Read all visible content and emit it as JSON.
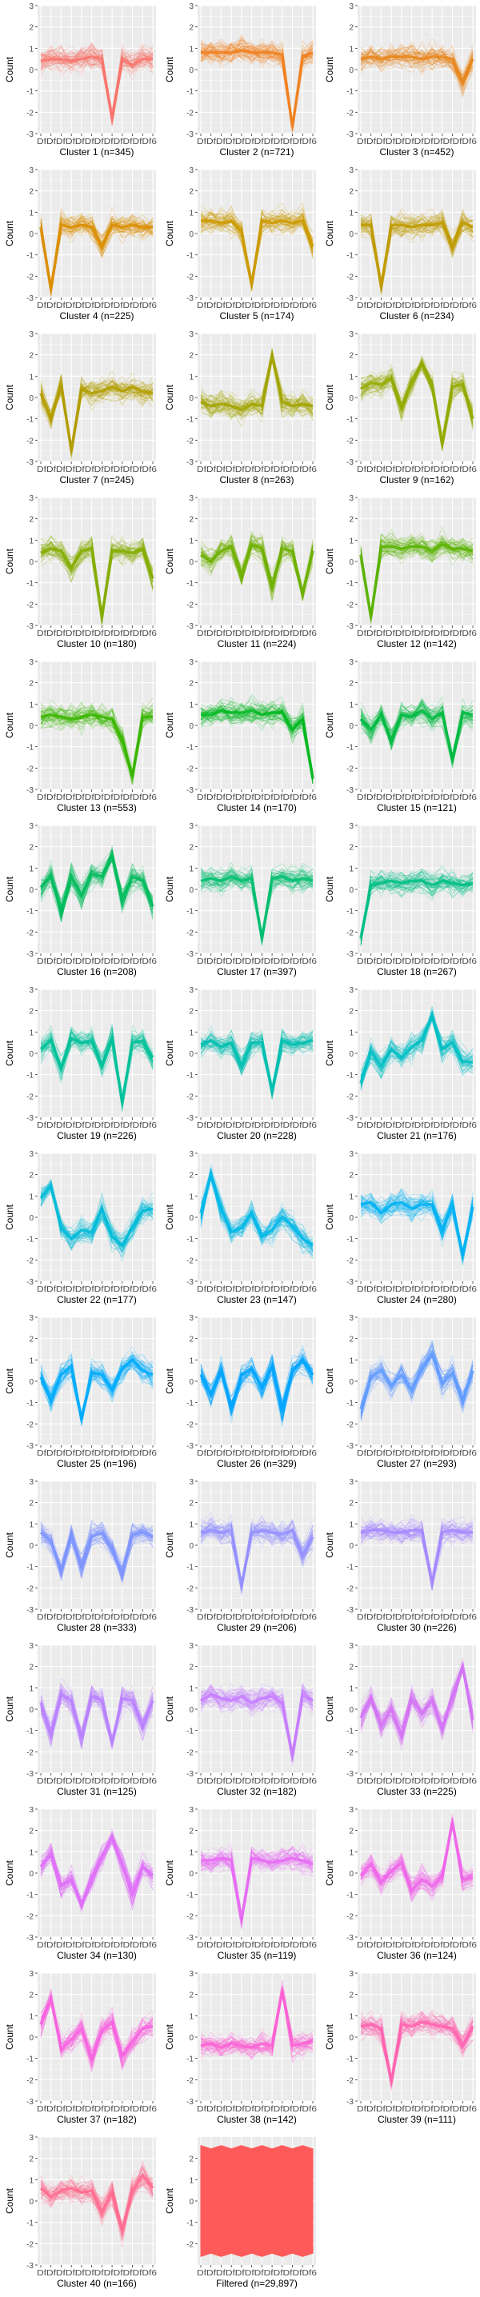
{
  "ylabel": "Count",
  "ytick_labels": [
    "3",
    "2",
    "1",
    "0",
    "-1",
    "-2",
    "-3"
  ],
  "xtick_text": "DfDfDfDfDfDfDfDfDfDfDfDf6",
  "chart_data": {
    "type": "line",
    "description": "Small multiples of expression profiles per cluster (overlaid lines, one per gene)",
    "ylim": [
      -3,
      3
    ],
    "ytick_values": [
      3,
      2,
      1,
      0,
      -1,
      -2,
      -3
    ],
    "n_timepoints": 12,
    "panels": [
      {
        "title": "Cluster 1 (n=345)",
        "color": "#F8766D",
        "profile": [
          0.4,
          0.5,
          0.5,
          0.4,
          0.5,
          0.6,
          0.5,
          -2.3,
          0.5,
          0.2,
          0.5,
          0.5
        ]
      },
      {
        "title": "Cluster 2 (n=721)",
        "color": "#F0801F",
        "profile": [
          0.8,
          0.8,
          0.8,
          0.8,
          0.9,
          0.8,
          0.8,
          0.8,
          0.7,
          -2.7,
          0.6,
          0.8
        ]
      },
      {
        "title": "Cluster 3 (n=452)",
        "color": "#E7861B",
        "profile": [
          0.5,
          0.6,
          0.5,
          0.6,
          0.6,
          0.6,
          0.5,
          0.6,
          0.6,
          0.5,
          -0.6,
          0.5
        ]
      },
      {
        "title": "Cluster 4 (n=225)",
        "color": "#DB8E00",
        "profile": [
          0.3,
          -2.6,
          0.4,
          0.3,
          0.4,
          0.3,
          -0.6,
          0.4,
          0.3,
          0.4,
          0.3,
          0.3
        ]
      },
      {
        "title": "Cluster 5 (n=174)",
        "color": "#CC9A00",
        "profile": [
          0.6,
          0.6,
          0.5,
          0.6,
          0.1,
          -2.4,
          0.6,
          0.5,
          0.6,
          0.5,
          0.6,
          -0.6
        ]
      },
      {
        "title": "Cluster 6 (n=234)",
        "color": "#C09B00",
        "profile": [
          0.4,
          0.4,
          -2.5,
          0.4,
          0.4,
          0.3,
          0.4,
          0.4,
          0.5,
          -0.6,
          0.5,
          0.3
        ]
      },
      {
        "title": "Cluster 7 (n=245)",
        "color": "#B39E00",
        "profile": [
          0.2,
          -1.0,
          0.6,
          -2.5,
          0.4,
          0.2,
          0.3,
          0.5,
          0.3,
          0.5,
          0.3,
          0.2
        ]
      },
      {
        "title": "Cluster 8 (n=263)",
        "color": "#A3A500",
        "profile": [
          -0.2,
          -0.4,
          -0.3,
          -0.4,
          -0.6,
          -0.3,
          -0.4,
          2.0,
          -0.2,
          -0.4,
          -0.3,
          -0.4
        ]
      },
      {
        "title": "Cluster 9 (n=162)",
        "color": "#93AA00",
        "profile": [
          0.4,
          0.7,
          0.6,
          0.9,
          -0.5,
          0.7,
          1.6,
          0.6,
          -2.2,
          0.5,
          0.6,
          -1.0
        ]
      },
      {
        "title": "Cluster 10 (n=180)",
        "color": "#85AD00",
        "profile": [
          0.4,
          0.6,
          0.5,
          -0.3,
          0.5,
          0.6,
          -2.6,
          0.5,
          0.5,
          0.4,
          0.6,
          -0.8
        ]
      },
      {
        "title": "Cluster 11 (n=224)",
        "color": "#6FB000",
        "profile": [
          0.3,
          0.0,
          0.5,
          0.7,
          -0.7,
          0.8,
          0.6,
          -1.2,
          0.6,
          0.5,
          -1.5,
          0.5
        ]
      },
      {
        "title": "Cluster 12 (n=142)",
        "color": "#5BB300",
        "profile": [
          0.3,
          -2.6,
          0.7,
          0.7,
          0.6,
          0.7,
          0.7,
          0.5,
          0.8,
          0.6,
          0.6,
          0.5
        ]
      },
      {
        "title": "Cluster 13 (n=553)",
        "color": "#39B600",
        "profile": [
          0.4,
          0.5,
          0.4,
          0.3,
          0.4,
          0.5,
          0.4,
          0.3,
          -0.7,
          -2.4,
          0.4,
          0.4
        ]
      },
      {
        "title": "Cluster 14 (n=170)",
        "color": "#00B81F",
        "profile": [
          0.5,
          0.5,
          0.7,
          0.6,
          0.6,
          0.7,
          0.5,
          0.6,
          0.6,
          -0.2,
          0.3,
          -2.5
        ]
      },
      {
        "title": "Cluster 15 (n=121)",
        "color": "#00BA42",
        "profile": [
          0.3,
          -0.2,
          0.5,
          -0.7,
          0.5,
          0.4,
          0.7,
          0.3,
          0.6,
          -1.6,
          0.6,
          0.5
        ]
      },
      {
        "title": "Cluster 16 (n=208)",
        "color": "#00BC5C",
        "profile": [
          0.1,
          0.6,
          -1.0,
          0.6,
          -0.3,
          0.7,
          0.6,
          1.6,
          -0.5,
          0.6,
          0.4,
          -0.8
        ]
      },
      {
        "title": "Cluster 17 (n=397)",
        "color": "#00BE70",
        "profile": [
          0.4,
          0.5,
          0.4,
          0.6,
          0.4,
          0.5,
          -2.3,
          0.5,
          0.6,
          0.4,
          0.5,
          0.4
        ]
      },
      {
        "title": "Cluster 18 (n=267)",
        "color": "#00BF86",
        "profile": [
          -2.3,
          0.2,
          0.3,
          0.4,
          0.3,
          0.4,
          0.4,
          0.2,
          0.4,
          0.3,
          0.2,
          0.3
        ]
      },
      {
        "title": "Cluster 19 (n=226)",
        "color": "#00C19A",
        "profile": [
          0.2,
          0.6,
          -0.7,
          0.7,
          0.5,
          0.6,
          -0.6,
          0.7,
          -2.3,
          0.5,
          0.6,
          -0.2
        ]
      },
      {
        "title": "Cluster 20 (n=228)",
        "color": "#00C0AF",
        "profile": [
          0.4,
          0.6,
          0.3,
          0.5,
          -0.6,
          0.5,
          0.5,
          -1.8,
          0.6,
          0.4,
          0.5,
          0.6
        ]
      },
      {
        "title": "Cluster 21 (n=176)",
        "color": "#00BFC4",
        "profile": [
          -1.4,
          0.1,
          -0.6,
          0.2,
          -0.2,
          0.3,
          0.6,
          1.8,
          0.2,
          0.5,
          -0.4,
          -0.4
        ]
      },
      {
        "title": "Cluster 22 (n=177)",
        "color": "#00BCD8",
        "profile": [
          0.9,
          1.5,
          -0.5,
          -1.0,
          -0.6,
          -0.7,
          0.4,
          -0.9,
          -1.3,
          -0.5,
          0.3,
          0.4
        ]
      },
      {
        "title": "Cluster 23 (n=147)",
        "color": "#00B8E7",
        "profile": [
          0.2,
          2.0,
          0.4,
          -0.7,
          -0.5,
          0.2,
          -0.9,
          -0.6,
          0.0,
          -0.4,
          -1.0,
          -1.3
        ]
      },
      {
        "title": "Cluster 24 (n=280)",
        "color": "#00B2F3",
        "profile": [
          0.6,
          0.7,
          0.2,
          0.6,
          0.7,
          0.4,
          0.6,
          0.6,
          -0.6,
          0.6,
          -1.8,
          0.5
        ]
      },
      {
        "title": "Cluster 25 (n=196)",
        "color": "#00ABFD",
        "profile": [
          0.2,
          -0.9,
          0.3,
          0.7,
          -1.8,
          0.4,
          0.3,
          -0.4,
          0.6,
          1.0,
          0.5,
          0.3
        ]
      },
      {
        "title": "Cluster 26 (n=329)",
        "color": "#00A5FF",
        "profile": [
          0.3,
          -0.6,
          0.5,
          -1.3,
          0.3,
          0.6,
          -0.3,
          0.7,
          -1.4,
          0.5,
          1.0,
          0.3
        ]
      },
      {
        "title": "Cluster 27 (n=293)",
        "color": "#619CFF",
        "profile": [
          -1.3,
          0.2,
          0.5,
          -0.2,
          0.3,
          -0.4,
          0.6,
          1.3,
          -0.1,
          0.4,
          -0.9,
          0.5
        ]
      },
      {
        "title": "Cluster 28 (n=333)",
        "color": "#7C94FF",
        "profile": [
          0.6,
          0.2,
          -1.2,
          0.5,
          -1.0,
          0.4,
          0.6,
          -0.2,
          -1.3,
          0.5,
          0.6,
          0.4
        ]
      },
      {
        "title": "Cluster 29 (n=206)",
        "color": "#9590FF",
        "profile": [
          0.6,
          0.7,
          0.6,
          0.7,
          -1.9,
          0.6,
          0.7,
          0.6,
          0.5,
          0.7,
          -0.5,
          0.4
        ]
      },
      {
        "title": "Cluster 30 (n=226)",
        "color": "#A58AFF",
        "profile": [
          0.6,
          0.7,
          0.7,
          0.6,
          0.6,
          0.7,
          0.7,
          -1.8,
          0.6,
          0.7,
          0.6,
          0.6
        ]
      },
      {
        "title": "Cluster 31 (n=125)",
        "color": "#B983FF",
        "profile": [
          0.3,
          -1.1,
          0.7,
          0.4,
          -1.4,
          0.6,
          0.4,
          -1.6,
          0.5,
          0.4,
          -0.8,
          0.4
        ]
      },
      {
        "title": "Cluster 32 (n=182)",
        "color": "#C77CFF",
        "profile": [
          0.4,
          0.7,
          0.5,
          0.4,
          0.6,
          0.3,
          0.5,
          0.6,
          0.3,
          -2.2,
          0.7,
          0.4
        ]
      },
      {
        "title": "Cluster 33 (n=225)",
        "color": "#D474F5",
        "profile": [
          -0.4,
          0.5,
          -0.8,
          0.0,
          -1.2,
          0.5,
          -0.2,
          0.4,
          -0.9,
          0.6,
          2.0,
          -0.5
        ]
      },
      {
        "title": "Cluster 34 (n=130)",
        "color": "#DF70F8",
        "profile": [
          0.3,
          0.9,
          -0.6,
          -0.3,
          -1.5,
          -0.2,
          0.8,
          1.7,
          0.4,
          -1.0,
          0.3,
          -0.1
        ]
      },
      {
        "title": "Cluster 35 (n=119)",
        "color": "#E76BF3",
        "profile": [
          0.6,
          0.6,
          0.7,
          0.6,
          -2.2,
          0.7,
          0.6,
          0.5,
          0.6,
          0.7,
          0.6,
          0.4
        ]
      },
      {
        "title": "Cluster 36 (n=124)",
        "color": "#F066EA",
        "profile": [
          -0.1,
          0.4,
          -0.4,
          0.1,
          0.5,
          -0.8,
          -0.3,
          -0.6,
          -0.2,
          2.4,
          -0.3,
          -0.2
        ]
      },
      {
        "title": "Cluster 37 (n=182)",
        "color": "#F763E0",
        "profile": [
          0.6,
          1.8,
          -0.6,
          -0.1,
          0.4,
          -1.0,
          0.3,
          0.7,
          -0.9,
          -0.2,
          0.4,
          0.5
        ]
      },
      {
        "title": "Cluster 38 (n=142)",
        "color": "#FC61D5",
        "profile": [
          -0.4,
          -0.3,
          -0.5,
          -0.3,
          -0.4,
          -0.5,
          -0.3,
          -0.4,
          2.2,
          -0.4,
          -0.3,
          -0.2
        ]
      },
      {
        "title": "Cluster 39 (n=111)",
        "color": "#FF64B0",
        "profile": [
          0.5,
          0.6,
          0.4,
          -2.1,
          0.6,
          0.5,
          0.7,
          0.6,
          0.5,
          0.4,
          -0.4,
          0.5
        ]
      },
      {
        "title": "Cluster 40 (n=166)",
        "color": "#FF6C91",
        "profile": [
          0.6,
          0.2,
          0.5,
          0.6,
          0.4,
          0.5,
          -0.5,
          0.4,
          -1.4,
          0.5,
          1.2,
          0.6
        ]
      },
      {
        "title": "Filtered (n=29,897)",
        "color": "#FF5A5A",
        "profile": [
          0,
          0,
          0,
          0,
          0,
          0,
          0,
          0,
          0,
          0,
          0,
          0
        ],
        "band": [
          -2.6,
          2.6
        ],
        "ylim": [
          -3,
          3
        ],
        "ytick_values": [
          2,
          1,
          0,
          -1,
          -2
        ],
        "ytick_labels": [
          "2",
          "1",
          "0",
          "-1",
          "-2"
        ]
      }
    ]
  }
}
